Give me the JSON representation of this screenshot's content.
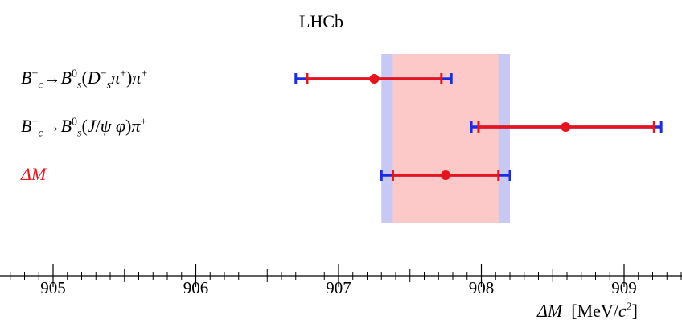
{
  "chart_data": {
    "type": "scatter",
    "title": "LHCb",
    "xlabel": "ΔM [MeV/c²]",
    "xlim": [
      904.45,
      909.65
    ],
    "ticks": [
      905,
      906,
      907,
      908,
      909
    ],
    "tick_labels": [
      "905",
      "906",
      "907",
      "908",
      "909"
    ],
    "grid": false,
    "band": {
      "stat": [
        907.38,
        908.12
      ],
      "total": [
        907.3,
        908.2
      ]
    },
    "measurements": [
      {
        "label": "B_c⁺→B_s⁰(D_s⁻π⁺)π⁺",
        "value": 907.25,
        "stat": [
          906.78,
          907.72
        ],
        "total": [
          906.7,
          907.79
        ]
      },
      {
        "label": "B_c⁺→B_s⁰(J/ψφ)π⁺",
        "value": 908.59,
        "stat": [
          907.98,
          909.21
        ],
        "total": [
          907.93,
          909.26
        ]
      },
      {
        "label": "ΔM",
        "value": 907.75,
        "stat": [
          907.38,
          908.12
        ],
        "total": [
          907.3,
          908.2
        ]
      }
    ],
    "colors": {
      "stat": "#e8141c",
      "total": "#1a2de0",
      "stat_band": "#fcc8c8",
      "total_band": "#c7c8f4"
    }
  }
}
